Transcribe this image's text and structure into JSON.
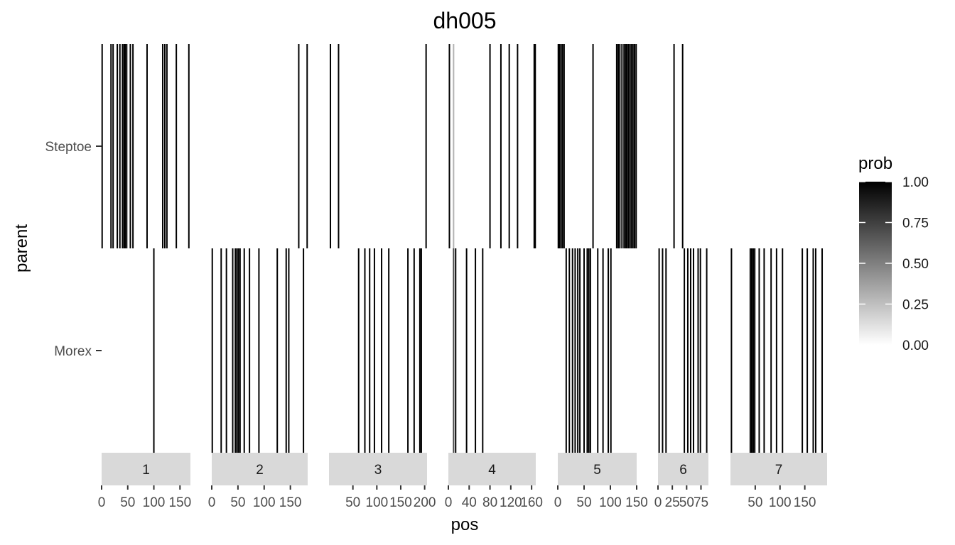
{
  "chart_data": {
    "type": "heatmap",
    "title": "dh005",
    "xlabel": "pos",
    "ylabel": "parent",
    "rows": [
      "Steptoe",
      "Morex"
    ],
    "legend": {
      "title": "prob",
      "ticks": [
        "1.00",
        "0.75",
        "0.50",
        "0.25",
        "0.00"
      ],
      "placement": "right",
      "low_color": "#ffffff",
      "high_color": "#000000"
    },
    "panels": [
      {
        "label": "1",
        "xlim": [
          0,
          170
        ],
        "ticks": [
          0,
          50,
          100,
          150
        ],
        "tick_labels": [
          "0",
          "50",
          "100",
          "150"
        ],
        "markers": [
          {
            "pos": 1,
            "steptoe": 1
          },
          {
            "pos": 18,
            "steptoe": 1
          },
          {
            "pos": 22,
            "steptoe": 1
          },
          {
            "pos": 30,
            "steptoe": 1
          },
          {
            "pos": 35,
            "steptoe": 1
          },
          {
            "pos": 40,
            "steptoe": 1
          },
          {
            "pos": 43,
            "steptoe": 1
          },
          {
            "pos": 45,
            "steptoe": 1
          },
          {
            "pos": 48,
            "steptoe": 1
          },
          {
            "pos": 55,
            "steptoe": 1
          },
          {
            "pos": 60,
            "steptoe": 1
          },
          {
            "pos": 87,
            "steptoe": 1
          },
          {
            "pos": 100,
            "steptoe": 0
          },
          {
            "pos": 117,
            "steptoe": 1
          },
          {
            "pos": 121,
            "steptoe": 1
          },
          {
            "pos": 125,
            "steptoe": 1
          },
          {
            "pos": 143,
            "steptoe": 1
          },
          {
            "pos": 167,
            "steptoe": 1
          }
        ]
      },
      {
        "label": "2",
        "xlim": [
          0,
          183
        ],
        "ticks": [
          0,
          50,
          100,
          150
        ],
        "tick_labels": [
          "0",
          "50",
          "100",
          "150"
        ],
        "markers": [
          {
            "pos": 1,
            "steptoe": 0
          },
          {
            "pos": 18,
            "steptoe": 0
          },
          {
            "pos": 28,
            "steptoe": 0
          },
          {
            "pos": 40,
            "steptoe": 0
          },
          {
            "pos": 45,
            "steptoe": 0
          },
          {
            "pos": 48,
            "steptoe": 0
          },
          {
            "pos": 51,
            "steptoe": 0
          },
          {
            "pos": 54,
            "steptoe": 0
          },
          {
            "pos": 62,
            "steptoe": 0
          },
          {
            "pos": 72,
            "steptoe": 0
          },
          {
            "pos": 90,
            "steptoe": 0
          },
          {
            "pos": 125,
            "steptoe": 0
          },
          {
            "pos": 142,
            "steptoe": 0
          },
          {
            "pos": 147,
            "steptoe": 0
          },
          {
            "pos": 166,
            "steptoe": 1
          },
          {
            "pos": 175,
            "steptoe": 0
          },
          {
            "pos": 182,
            "steptoe": 1
          }
        ]
      },
      {
        "label": "3",
        "xlim": [
          0,
          205
        ],
        "ticks": [
          50,
          100,
          150,
          200
        ],
        "tick_labels": [
          "50",
          "100",
          "150",
          "200"
        ],
        "markers": [
          {
            "pos": 3,
            "steptoe": 1
          },
          {
            "pos": 20,
            "steptoe": 1
          },
          {
            "pos": 62,
            "steptoe": 0
          },
          {
            "pos": 75,
            "steptoe": 0
          },
          {
            "pos": 85,
            "steptoe": 0
          },
          {
            "pos": 95,
            "steptoe": 0
          },
          {
            "pos": 110,
            "steptoe": 0
          },
          {
            "pos": 125,
            "steptoe": 0
          },
          {
            "pos": 165,
            "steptoe": 0
          },
          {
            "pos": 178,
            "steptoe": 0
          },
          {
            "pos": 190,
            "steptoe": 0
          },
          {
            "pos": 193,
            "steptoe": 0
          },
          {
            "pos": 203,
            "steptoe": 1
          }
        ]
      },
      {
        "label": "4",
        "xlim": [
          0,
          168
        ],
        "ticks": [
          0,
          40,
          80,
          120,
          160
        ],
        "tick_labels": [
          "0",
          "40",
          "80",
          "120",
          "160"
        ],
        "markers": [
          {
            "pos": 2,
            "steptoe": 1
          },
          {
            "pos": 10,
            "steptoe": 0.3
          },
          {
            "pos": 14,
            "steptoe": 0
          },
          {
            "pos": 35,
            "steptoe": 0
          },
          {
            "pos": 52,
            "steptoe": 0
          },
          {
            "pos": 66,
            "steptoe": 0
          },
          {
            "pos": 80,
            "steptoe": 1
          },
          {
            "pos": 101,
            "steptoe": 1
          },
          {
            "pos": 117,
            "steptoe": 1
          },
          {
            "pos": 133,
            "steptoe": 1
          },
          {
            "pos": 165,
            "steptoe": 1
          },
          {
            "pos": 167,
            "steptoe": 1
          }
        ]
      },
      {
        "label": "5",
        "xlim": [
          0,
          150
        ],
        "ticks": [
          0,
          50,
          100,
          150
        ],
        "tick_labels": [
          "0",
          "50",
          "100",
          "150"
        ],
        "markers": [
          {
            "pos": 1,
            "steptoe": 1
          },
          {
            "pos": 3,
            "steptoe": 1
          },
          {
            "pos": 6,
            "steptoe": 1
          },
          {
            "pos": 9,
            "steptoe": 1
          },
          {
            "pos": 12,
            "steptoe": 1
          },
          {
            "pos": 16,
            "steptoe": 0
          },
          {
            "pos": 22,
            "steptoe": 0
          },
          {
            "pos": 28,
            "steptoe": 0
          },
          {
            "pos": 33,
            "steptoe": 0
          },
          {
            "pos": 38,
            "steptoe": 0
          },
          {
            "pos": 42,
            "steptoe": 0
          },
          {
            "pos": 50,
            "steptoe": 0
          },
          {
            "pos": 56,
            "steptoe": 0
          },
          {
            "pos": 59,
            "steptoe": 0
          },
          {
            "pos": 62,
            "steptoe": 0
          },
          {
            "pos": 67,
            "steptoe": 1
          },
          {
            "pos": 76,
            "steptoe": 0
          },
          {
            "pos": 86,
            "steptoe": 0
          },
          {
            "pos": 96,
            "steptoe": 0
          },
          {
            "pos": 101,
            "steptoe": 0
          },
          {
            "pos": 112,
            "steptoe": 1
          },
          {
            "pos": 115,
            "steptoe": 1
          },
          {
            "pos": 118,
            "steptoe": 1
          },
          {
            "pos": 122,
            "steptoe": 1
          },
          {
            "pos": 126,
            "steptoe": 1
          },
          {
            "pos": 129,
            "steptoe": 1
          },
          {
            "pos": 131,
            "steptoe": 1
          },
          {
            "pos": 134,
            "steptoe": 1
          },
          {
            "pos": 137,
            "steptoe": 1
          },
          {
            "pos": 140,
            "steptoe": 1
          },
          {
            "pos": 143,
            "steptoe": 1
          },
          {
            "pos": 146,
            "steptoe": 1
          },
          {
            "pos": 149,
            "steptoe": 1
          }
        ]
      },
      {
        "label": "6",
        "xlim": [
          0,
          88
        ],
        "ticks": [
          0,
          25,
          50,
          75
        ],
        "tick_labels": [
          "0",
          "25",
          "50",
          "75"
        ],
        "markers": [
          {
            "pos": 2,
            "steptoe": 0
          },
          {
            "pos": 8,
            "steptoe": 0
          },
          {
            "pos": 14,
            "steptoe": 0
          },
          {
            "pos": 28,
            "steptoe": 1
          },
          {
            "pos": 43,
            "steptoe": 1
          },
          {
            "pos": 46,
            "steptoe": 0
          },
          {
            "pos": 52,
            "steptoe": 0
          },
          {
            "pos": 57,
            "steptoe": 0
          },
          {
            "pos": 62,
            "steptoe": 0
          },
          {
            "pos": 70,
            "steptoe": 0
          },
          {
            "pos": 74,
            "steptoe": 0
          },
          {
            "pos": 85,
            "steptoe": 0
          }
        ]
      },
      {
        "label": "7",
        "xlim": [
          0,
          195
        ],
        "ticks": [
          50,
          100,
          150
        ],
        "tick_labels": [
          "50",
          "100",
          "150"
        ],
        "markers": [
          {
            "pos": 2,
            "steptoe": 0
          },
          {
            "pos": 40,
            "steptoe": 0
          },
          {
            "pos": 43,
            "steptoe": 0
          },
          {
            "pos": 46,
            "steptoe": 0
          },
          {
            "pos": 49,
            "steptoe": 0
          },
          {
            "pos": 58,
            "steptoe": 0
          },
          {
            "pos": 68,
            "steptoe": 0
          },
          {
            "pos": 82,
            "steptoe": 0
          },
          {
            "pos": 93,
            "steptoe": 0
          },
          {
            "pos": 105,
            "steptoe": 0
          },
          {
            "pos": 145,
            "steptoe": 0
          },
          {
            "pos": 155,
            "steptoe": 0
          },
          {
            "pos": 167,
            "steptoe": 0
          },
          {
            "pos": 172,
            "steptoe": 0
          },
          {
            "pos": 185,
            "steptoe": 0
          }
        ]
      }
    ]
  }
}
